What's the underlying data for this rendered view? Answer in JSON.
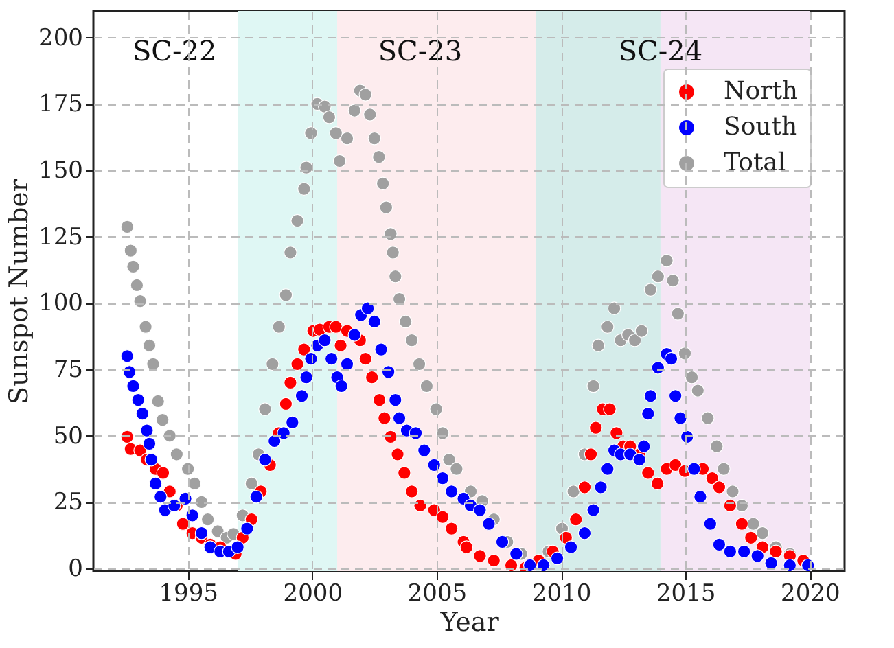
{
  "chart_data": {
    "type": "scatter",
    "xlabel": "Year",
    "ylabel": "Sunspot Number",
    "xlim": [
      1991.2,
      2021.4
    ],
    "ylim": [
      -1,
      210
    ],
    "xticks": [
      1995,
      2000,
      2005,
      2010,
      2015,
      2020
    ],
    "yticks": [
      0,
      25,
      50,
      75,
      100,
      125,
      150,
      175,
      200
    ],
    "grid": true,
    "legend": "top right",
    "marker": "circle",
    "bands": [
      {
        "axis": "x",
        "from": 1997.0,
        "to": 2001.0,
        "color": "#dff7f4"
      },
      {
        "axis": "x",
        "from": 2001.0,
        "to": 2009.0,
        "color": "#fdecee"
      },
      {
        "axis": "x",
        "from": 2009.0,
        "to": 2014.0,
        "color": "#d5ecea"
      },
      {
        "axis": "x",
        "from": 2014.0,
        "to": 2020.0,
        "color": "#f5e6f5"
      }
    ],
    "annotations": [
      "SC-22",
      "SC-23",
      "SC-24"
    ],
    "series": [
      {
        "name": "North",
        "color": "#ff0000",
        "x": [
          1992.56,
          1992.7,
          1993.08,
          1993.35,
          1993.7,
          1994.0,
          1994.27,
          1994.55,
          1994.8,
          1995.18,
          1995.55,
          1995.9,
          1996.3,
          1996.92,
          1997.2,
          1997.56,
          1997.93,
          1998.3,
          1998.66,
          1998.94,
          1999.12,
          1999.4,
          1999.67,
          2000.04,
          2000.3,
          2000.68,
          2000.95,
          2001.14,
          2001.4,
          2001.92,
          2002.14,
          2002.4,
          2002.7,
          2002.9,
          2003.15,
          2003.43,
          2003.7,
          2004.0,
          2004.34,
          2004.9,
          2005.24,
          2005.6,
          2006.08,
          2006.2,
          2006.74,
          2007.3,
          2008.0,
          2008.57,
          2009.1,
          2009.67,
          2010.2,
          2010.6,
          2010.95,
          2011.2,
          2011.4,
          2011.68,
          2011.96,
          2012.23,
          2012.5,
          2012.78,
          2013.15,
          2013.5,
          2013.88,
          2014.25,
          2014.6,
          2014.98,
          2015.7,
          2016.08,
          2016.36,
          2016.8,
          2017.27,
          2017.64,
          2018.1,
          2018.64,
          2019.2,
          2019.74
        ],
        "values": [
          49.6,
          45,
          44.5,
          41,
          37.5,
          36,
          29,
          23.7,
          16.8,
          13.3,
          11.6,
          9,
          8,
          5.5,
          11.6,
          18.5,
          29,
          39,
          51,
          62,
          70,
          77,
          82.5,
          89.5,
          90,
          91,
          91,
          84,
          89.5,
          86,
          79,
          72,
          63.5,
          56.6,
          49.6,
          43,
          36,
          29,
          23.7,
          22,
          19.4,
          15,
          10,
          8,
          4.7,
          3,
          1.2,
          0.3,
          3,
          6.4,
          11.6,
          18.5,
          30.6,
          43,
          53,
          60,
          60,
          51,
          46,
          46,
          43,
          36,
          32,
          37.5,
          39,
          36.7,
          37.5,
          34,
          30.6,
          23.7,
          16.8,
          11.6,
          8,
          6.4,
          4.7,
          3
        ]
      },
      {
        "name": "South",
        "color": "#0000ff",
        "x": [
          1992.56,
          1992.65,
          1992.8,
          1993.0,
          1993.17,
          1993.35,
          1993.45,
          1993.53,
          1993.7,
          1993.9,
          1994.08,
          1994.45,
          1994.9,
          1995.18,
          1995.55,
          1995.9,
          1996.3,
          1996.65,
          1997.0,
          1997.38,
          1997.75,
          1998.1,
          1998.48,
          1998.85,
          1999.2,
          1999.58,
          1999.76,
          1999.95,
          2000.2,
          2000.5,
          2000.77,
          2001.0,
          2001.17,
          2001.4,
          2001.7,
          2001.96,
          2002.23,
          2002.5,
          2002.77,
          2003.06,
          2003.34,
          2003.5,
          2003.8,
          2004.16,
          2004.5,
          2004.9,
          2005.24,
          2005.6,
          2006.08,
          2006.37,
          2006.74,
          2007.1,
          2007.64,
          2008.2,
          2008.75,
          2009.3,
          2009.85,
          2010.4,
          2010.95,
          2011.3,
          2011.6,
          2011.87,
          2012.14,
          2012.4,
          2012.78,
          2013.15,
          2013.33,
          2013.5,
          2013.6,
          2013.9,
          2014.25,
          2014.43,
          2014.6,
          2014.8,
          2015.07,
          2015.35,
          2015.6,
          2016.0,
          2016.36,
          2016.8,
          2017.36,
          2017.9,
          2018.45,
          2019.2,
          2019.93
        ],
        "values": [
          80,
          74,
          68.7,
          63.5,
          58.3,
          52,
          47,
          41,
          32,
          27,
          22,
          23.7,
          26.3,
          20,
          13.3,
          8,
          6.4,
          6.4,
          8,
          15,
          27,
          41,
          48,
          51,
          55,
          65,
          72,
          79,
          84,
          86,
          79,
          72,
          68.7,
          77,
          88,
          95.5,
          98,
          93,
          82.5,
          74,
          63.5,
          56.6,
          52,
          51,
          44.5,
          39,
          34,
          29,
          26.3,
          23.7,
          22,
          16.8,
          10,
          5.5,
          1.2,
          1.2,
          3.8,
          8,
          13.3,
          22,
          30.6,
          37.5,
          44.5,
          43,
          43,
          41,
          46,
          58.3,
          65,
          75.6,
          80.8,
          79,
          65,
          56.6,
          49.6,
          37.5,
          27,
          16.8,
          9,
          6.4,
          6.4,
          4.7,
          2,
          1.2,
          1.2
        ]
      },
      {
        "name": "Total",
        "color": "#a0a0a0",
        "x": [
          1992.56,
          1992.7,
          1992.8,
          1992.95,
          1993.08,
          1993.3,
          1993.45,
          1993.6,
          1993.8,
          1993.98,
          1994.27,
          1994.55,
          1995.0,
          1995.27,
          1995.55,
          1995.8,
          1996.2,
          1996.56,
          1996.83,
          1997.2,
          1997.56,
          1997.84,
          1998.1,
          1998.4,
          1998.66,
          1998.94,
          1999.12,
          1999.4,
          1999.67,
          1999.76,
          1999.95,
          2000.2,
          2000.5,
          2000.68,
          2000.95,
          2001.1,
          2001.4,
          2001.7,
          2001.92,
          2002.14,
          2002.32,
          2002.5,
          2002.68,
          2002.84,
          2002.97,
          2003.15,
          2003.24,
          2003.34,
          2003.5,
          2003.75,
          2004.0,
          2004.3,
          2004.6,
          2004.98,
          2005.24,
          2005.5,
          2005.8,
          2006.37,
          2006.83,
          2007.3,
          2007.84,
          2008.4,
          2009.5,
          2010.04,
          2010.5,
          2010.95,
          2011.3,
          2011.5,
          2011.87,
          2012.14,
          2012.4,
          2012.7,
          2012.97,
          2013.24,
          2013.6,
          2013.9,
          2014.25,
          2014.5,
          2014.7,
          2014.98,
          2015.26,
          2015.5,
          2015.9,
          2016.26,
          2016.54,
          2016.9,
          2017.27,
          2017.73,
          2018.1,
          2018.64,
          2019.2
        ],
        "values": [
          128.7,
          119.7,
          113.7,
          106.7,
          100.7,
          91,
          84,
          77,
          63,
          56,
          50,
          43,
          37.5,
          32,
          25,
          18.5,
          14,
          11.6,
          13,
          20,
          32,
          43,
          60,
          77,
          91,
          103,
          119,
          131,
          143,
          151,
          164,
          175,
          174,
          170,
          164,
          153.5,
          162,
          172.5,
          180,
          178.5,
          171,
          162,
          155,
          145,
          136,
          126,
          119,
          110,
          101.5,
          93,
          86,
          77,
          68.7,
          60,
          51,
          41,
          37.5,
          29,
          25.4,
          18.5,
          10,
          5.5,
          6.4,
          15,
          29,
          43,
          68.7,
          84,
          91,
          98,
          86,
          88,
          86,
          89.5,
          105,
          110,
          116,
          108.5,
          96,
          81,
          72,
          67,
          56.6,
          46,
          37.5,
          29,
          23.7,
          16.8,
          13.3,
          8,
          5.5
        ]
      }
    ]
  }
}
